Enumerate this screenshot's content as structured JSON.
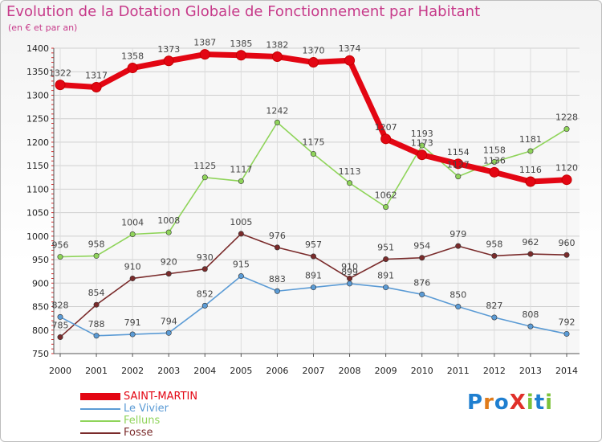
{
  "title": "Evolution de la Dotation Globale de Fonctionnement par Habitant",
  "subtitle": "(en € et par an)",
  "logo_text": "ProXiti",
  "chart_data": {
    "type": "line",
    "title": "Evolution de la Dotation Globale de Fonctionnement par Habitant",
    "subtitle": "(en € et par an)",
    "xlabel": "",
    "ylabel": "",
    "ylim": [
      750,
      1400
    ],
    "yticks": [
      750,
      800,
      850,
      900,
      950,
      1000,
      1050,
      1100,
      1150,
      1200,
      1250,
      1300,
      1350,
      1400
    ],
    "x": [
      "2000",
      "2001",
      "2002",
      "2003",
      "2004",
      "2005",
      "2006",
      "2007",
      "2008",
      "2009",
      "2010",
      "2011",
      "2012",
      "2013",
      "2014"
    ],
    "grid": true,
    "legend_position": "bottom-left",
    "series": [
      {
        "name": "SAINT-MARTIN",
        "color": "#e30613",
        "values": [
          1322,
          1317,
          1358,
          1373,
          1387,
          1385,
          1382,
          1370,
          1374,
          1207,
          1173,
          1154,
          1136,
          1116,
          1120
        ]
      },
      {
        "name": "Le Vivier",
        "color": "#5b9bd5",
        "values": [
          828,
          788,
          791,
          794,
          852,
          915,
          883,
          891,
          899,
          891,
          876,
          850,
          827,
          808,
          792
        ]
      },
      {
        "name": "Felluns",
        "color": "#8fd45a",
        "values": [
          956,
          958,
          1004,
          1008,
          1125,
          1117,
          1242,
          1175,
          1113,
          1062,
          1193,
          1127,
          1158,
          1181,
          1228
        ]
      },
      {
        "name": "Fosse",
        "color": "#7a2b2b",
        "values": [
          785,
          854,
          910,
          920,
          930,
          1005,
          976,
          957,
          910,
          951,
          954,
          979,
          958,
          962,
          960
        ]
      }
    ]
  }
}
